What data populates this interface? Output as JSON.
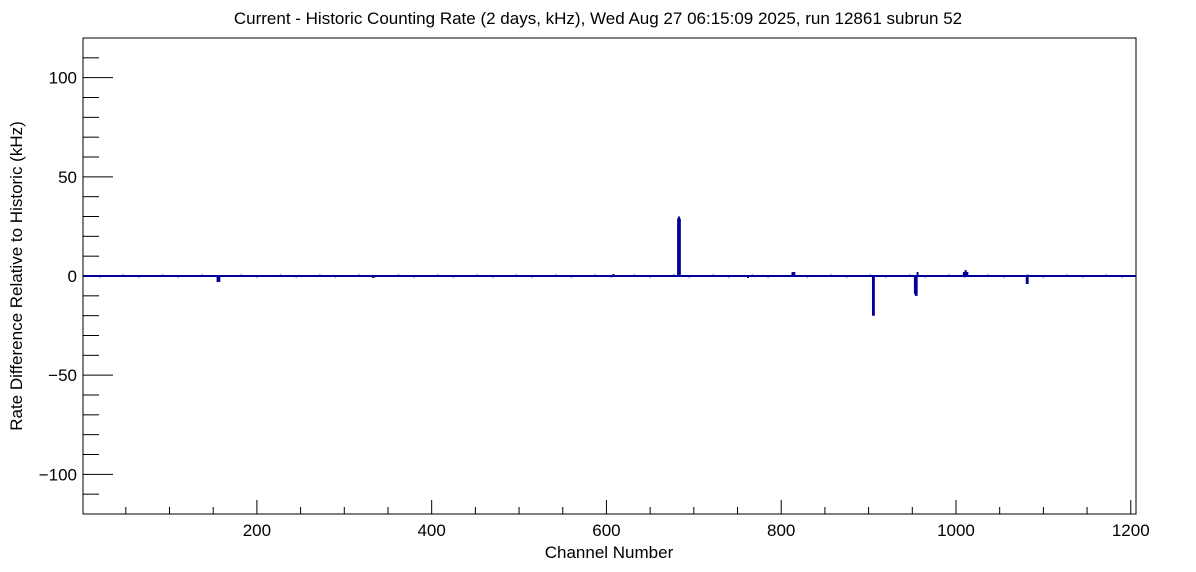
{
  "chart_data": {
    "type": "bar",
    "title": "Current - Historic Counting Rate (2 days, kHz), Wed Aug 27 06:15:09 2025, run 12861 subrun 52",
    "xlabel": "Channel Number",
    "ylabel": "Rate Difference Relative to Historic (kHz)",
    "xlim": [
      1,
      1206
    ],
    "ylim": [
      -120,
      120
    ],
    "x_ticks": [
      200,
      400,
      600,
      800,
      1000,
      1200
    ],
    "y_ticks": [
      -100,
      -50,
      0,
      50,
      100
    ],
    "y_tick_labels": [
      "−100",
      "−50",
      "0",
      "50",
      "100"
    ],
    "grid": false,
    "line_color": "#000099",
    "baseline": 0,
    "series": [
      {
        "x": [
          155,
          157,
          333,
          608,
          682,
          683,
          684,
          762,
          813,
          815,
          905,
          906,
          953,
          954,
          955,
          956,
          1009,
          1011,
          1013,
          1081,
          1082
        ],
        "values": [
          -3,
          -3,
          -1,
          1,
          29,
          30,
          29,
          -1,
          2,
          2,
          -20,
          -20,
          -9,
          -10,
          -10,
          2,
          2,
          3,
          2,
          -4,
          -4
        ]
      }
    ]
  }
}
